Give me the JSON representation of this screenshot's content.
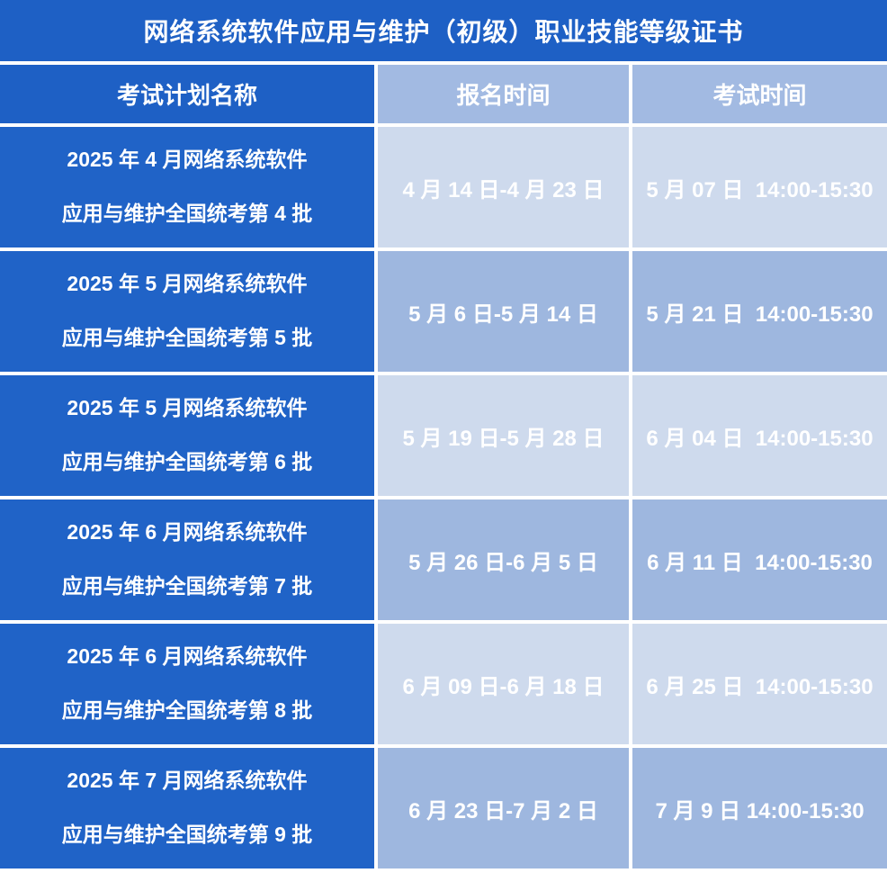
{
  "title": "网络系统软件应用与维护（初级）职业技能等级证书",
  "columns": {
    "plan": "考试计划名称",
    "registration": "报名时间",
    "exam": "考试时间"
  },
  "rows": [
    {
      "plan_line1": "2025 年 4 月网络系统软件",
      "plan_line2": "应用与维护全国统考第 4 批",
      "registration": "4 月 14 日-4 月 23 日",
      "exam_time": "5 月 07 日  14:00-15:30"
    },
    {
      "plan_line1": "2025 年 5 月网络系统软件",
      "plan_line2": "应用与维护全国统考第 5 批",
      "registration": "5 月 6 日-5 月 14 日",
      "exam_time": "5 月 21 日  14:00-15:30"
    },
    {
      "plan_line1": "2025 年 5 月网络系统软件",
      "plan_line2": "应用与维护全国统考第 6 批",
      "registration": "5 月 19 日-5 月 28 日",
      "exam_time": "6 月 04 日  14:00-15:30"
    },
    {
      "plan_line1": "2025 年 6 月网络系统软件",
      "plan_line2": "应用与维护全国统考第 7 批",
      "registration": "5 月 26 日-6 月 5 日",
      "exam_time": "6 月 11 日  14:00-15:30"
    },
    {
      "plan_line1": "2025 年 6 月网络系统软件",
      "plan_line2": "应用与维护全国统考第 8 批",
      "registration": "6 月 09 日-6 月 18 日",
      "exam_time": "6 月 25 日  14:00-15:30"
    },
    {
      "plan_line1": "2025 年 7 月网络系统软件",
      "plan_line2": "应用与维护全国统考第 9 批",
      "registration": "6 月 23 日-7 月 2 日",
      "exam_time": "7 月 9 日 14:00-15:30"
    }
  ],
  "colors": {
    "title_bg": "#1e60c5",
    "plan_cell_bg": "#2063c7",
    "header_time_bg": "#a2bae2",
    "row_light_bg": "#cedaed",
    "row_dark_bg": "#9eb7df",
    "grid_line": "#ffffff",
    "text": "#ffffff"
  }
}
